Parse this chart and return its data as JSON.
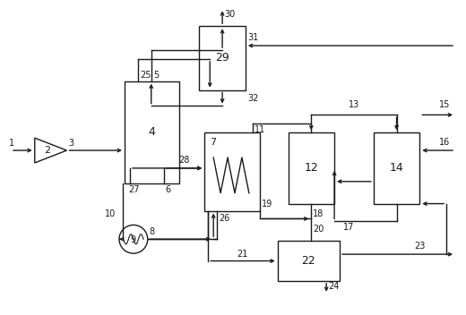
{
  "background": "#ffffff",
  "line_color": "#1a1a1a",
  "fig_width": 5.2,
  "fig_height": 3.52,
  "dpi": 100
}
